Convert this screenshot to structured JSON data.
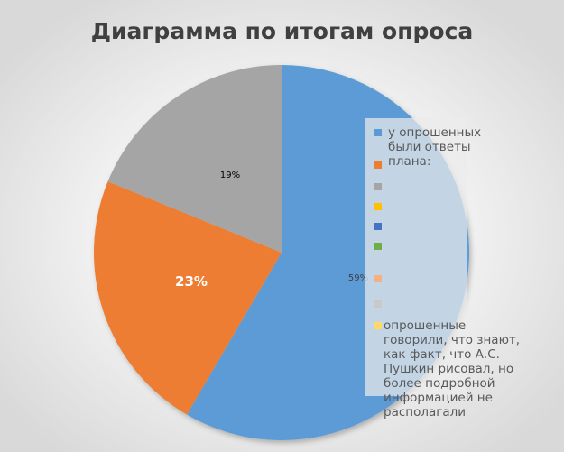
{
  "chart_data": {
    "type": "pie",
    "title": "Диаграмма по итогам опроса",
    "slices": [
      {
        "label": "59%",
        "value": 59,
        "color": "#5b9bd5",
        "label_color": "#404040"
      },
      {
        "label": "23%",
        "value": 23,
        "color": "#ed7d31",
        "label_color": "#ffffff"
      },
      {
        "label": "19%",
        "value": 19,
        "color": "#a5a5a5",
        "label_color": "#000000"
      }
    ],
    "legend": {
      "placement": "right",
      "items": [
        {
          "text": " у опрошенных были ответы плана:",
          "color": "#5b9bd5"
        },
        {
          "text": "",
          "color": "#ed7d31"
        },
        {
          "text": "",
          "color": "#a5a5a5"
        },
        {
          "text": "",
          "color": "#ffc000"
        },
        {
          "text": "",
          "color": "#4472c4"
        },
        {
          "text": "",
          "color": "#70ad47"
        },
        {
          "text": "",
          "color": "#f4b183"
        },
        {
          "text": "",
          "color": "#c9c9c9"
        },
        {
          "text": "опрошенные говорили, что знают, как факт, что А.С. Пушкин рисовал, но более подробной информацией не располагали",
          "color": "#ffd966"
        }
      ]
    }
  }
}
